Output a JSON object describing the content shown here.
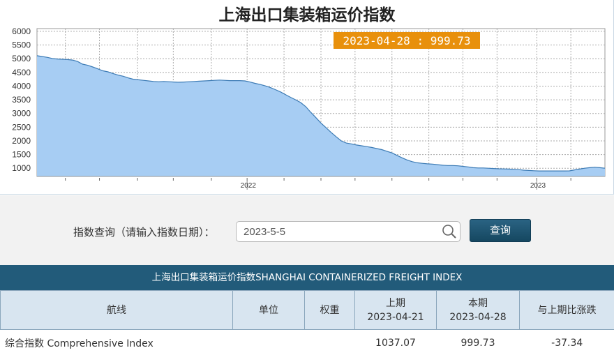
{
  "chart": {
    "title": "上海出口集装箱运价指数",
    "tooltip": "2023-04-28 : 999.73"
  },
  "chart_data": {
    "type": "area",
    "title": "上海出口集装箱运价指数",
    "x_tick_labels": [
      "2022",
      "2023"
    ],
    "y_tick_labels": [
      "1000",
      "1500",
      "2000",
      "2500",
      "3000",
      "3500",
      "4000",
      "4500",
      "5000",
      "5500",
      "6000"
    ],
    "ylim": [
      700,
      6100
    ],
    "grid": true,
    "fill_color": "#a7cdf3",
    "line_color": "#3c7bb5",
    "values": [
      5110,
      5080,
      5050,
      5010,
      4990,
      4980,
      4970,
      4950,
      4900,
      4800,
      4760,
      4700,
      4630,
      4560,
      4520,
      4460,
      4400,
      4360,
      4300,
      4250,
      4230,
      4210,
      4190,
      4170,
      4160,
      4170,
      4160,
      4150,
      4140,
      4150,
      4160,
      4170,
      4180,
      4190,
      4200,
      4210,
      4220,
      4210,
      4200,
      4200,
      4200,
      4190,
      4150,
      4100,
      4060,
      4010,
      3950,
      3870,
      3790,
      3690,
      3590,
      3500,
      3400,
      3250,
      3040,
      2850,
      2650,
      2480,
      2310,
      2150,
      2000,
      1920,
      1890,
      1850,
      1820,
      1790,
      1760,
      1720,
      1680,
      1620,
      1560,
      1470,
      1380,
      1300,
      1240,
      1200,
      1180,
      1160,
      1150,
      1130,
      1110,
      1100,
      1100,
      1090,
      1070,
      1050,
      1020,
      1010,
      1010,
      1000,
      990,
      980,
      975,
      970,
      960,
      950,
      930,
      920,
      910,
      900,
      900,
      900,
      900,
      900,
      900,
      905,
      940,
      970,
      1000,
      1020,
      1037.07,
      1020,
      999.73
    ]
  },
  "query": {
    "label": "指数查询（请输入指数日期）：",
    "input_value": "2023-5-5",
    "button_label": "查询"
  },
  "table": {
    "title": "上海出口集装箱运价指数SHANGHAI CONTAINERIZED FREIGHT INDEX",
    "headers": {
      "route": "航线",
      "unit": "单位",
      "weight": "权重",
      "prev_label": "上期",
      "prev_date": "2023-04-21",
      "curr_label": "本期",
      "curr_date": "2023-04-28",
      "change": "与上期比涨跌"
    },
    "rows": [
      {
        "route": "综合指数 Comprehensive Index",
        "unit": "",
        "weight": "",
        "prev": "1037.07",
        "curr": "999.73",
        "change": "-37.34"
      }
    ]
  }
}
